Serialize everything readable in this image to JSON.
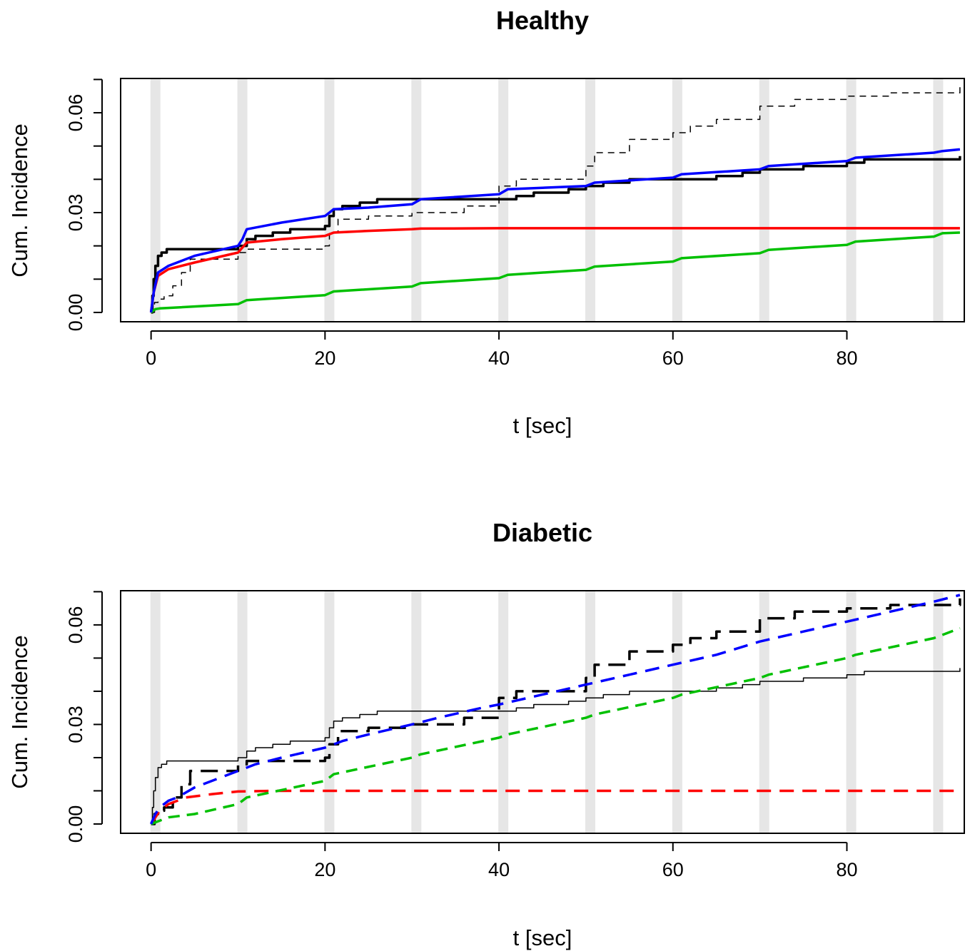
{
  "chart_data": [
    {
      "type": "line",
      "title": "Healthy",
      "xlabel": "t [sec]",
      "ylabel": "Cum. Incidence",
      "xlim": [
        -3.5,
        93.5
      ],
      "ylim": [
        -0.0028,
        0.0703
      ],
      "x_ticks": [
        0,
        20,
        40,
        60,
        80
      ],
      "x_tick_labels": [
        "0",
        "20",
        "40",
        "60",
        "80"
      ],
      "y_ticks": [
        0.0,
        0.01,
        0.02,
        0.03,
        0.04,
        0.05,
        0.06,
        0.07
      ],
      "y_tick_labels": [
        "0.00",
        "",
        "",
        "0.03",
        "",
        "",
        "0.06",
        ""
      ],
      "grid": false,
      "bands": [
        0.5,
        10.5,
        20.5,
        30.5,
        40.5,
        50.5,
        60.5,
        70.5,
        80.5,
        90.5
      ],
      "series": [
        {
          "color": "#000000",
          "width": 1.5,
          "dash": "9,7",
          "step": true,
          "x": [
            0,
            0.4,
            0.8,
            1.5,
            2.5,
            3.5,
            4.5,
            10,
            11,
            20,
            20.5,
            21.5,
            25,
            30,
            31,
            36,
            40,
            42,
            45,
            50,
            51,
            55,
            60,
            62,
            65,
            70,
            74,
            80,
            85,
            93
          ],
          "y": [
            0.0,
            0.003,
            0.004,
            0.005,
            0.008,
            0.012,
            0.016,
            0.018,
            0.019,
            0.02,
            0.024,
            0.028,
            0.029,
            0.03,
            0.03,
            0.032,
            0.038,
            0.04,
            0.04,
            0.044,
            0.048,
            0.052,
            0.054,
            0.056,
            0.058,
            0.062,
            0.064,
            0.065,
            0.066,
            0.068
          ]
        },
        {
          "color": "#000000",
          "width": 3.5,
          "step": true,
          "x": [
            0,
            0.15,
            0.3,
            0.5,
            0.8,
            1.2,
            1.8,
            3,
            10,
            11,
            12,
            14,
            16,
            18,
            20,
            20.5,
            21,
            22,
            24,
            26,
            30,
            35,
            38,
            42,
            44,
            48,
            50,
            52,
            55,
            60,
            65,
            68,
            70,
            75,
            80,
            82,
            88,
            93
          ],
          "y": [
            0.0,
            0.005,
            0.01,
            0.014,
            0.017,
            0.018,
            0.019,
            0.019,
            0.02,
            0.022,
            0.023,
            0.024,
            0.025,
            0.025,
            0.026,
            0.029,
            0.031,
            0.032,
            0.033,
            0.034,
            0.034,
            0.034,
            0.034,
            0.035,
            0.036,
            0.037,
            0.038,
            0.039,
            0.04,
            0.04,
            0.041,
            0.042,
            0.043,
            0.044,
            0.045,
            0.046,
            0.046,
            0.047
          ]
        },
        {
          "color": "#ff0000",
          "width": 3.5,
          "step": false,
          "x": [
            0,
            0.3,
            0.8,
            2,
            5,
            10,
            11,
            15,
            20,
            21,
            25,
            30,
            31,
            40,
            50,
            60,
            70,
            80,
            93
          ],
          "y": [
            0.0,
            0.006,
            0.011,
            0.013,
            0.015,
            0.018,
            0.021,
            0.022,
            0.023,
            0.024,
            0.0245,
            0.025,
            0.0252,
            0.0253,
            0.0253,
            0.0253,
            0.0253,
            0.0253,
            0.0253
          ]
        },
        {
          "color": "#00c000",
          "width": 3.5,
          "step": false,
          "x": [
            0,
            0.5,
            1,
            10,
            11,
            20,
            21,
            30,
            31,
            40,
            41,
            50,
            51,
            60,
            61,
            70,
            71,
            80,
            81,
            90,
            91,
            93
          ],
          "y": [
            0.0,
            0.001,
            0.0012,
            0.0025,
            0.0037,
            0.0052,
            0.0063,
            0.0078,
            0.0088,
            0.0103,
            0.0113,
            0.0128,
            0.0138,
            0.0153,
            0.0163,
            0.0178,
            0.0188,
            0.0203,
            0.0213,
            0.0228,
            0.0238,
            0.024
          ]
        },
        {
          "color": "#0000ff",
          "width": 3.5,
          "step": false,
          "x": [
            0,
            0.3,
            0.8,
            2,
            5,
            10,
            10.5,
            11,
            15,
            20,
            20.5,
            21,
            25,
            30,
            31,
            40,
            41,
            50,
            51,
            60,
            61,
            70,
            71,
            80,
            81,
            90,
            91,
            93
          ],
          "y": [
            0.0,
            0.006,
            0.012,
            0.014,
            0.017,
            0.02,
            0.022,
            0.025,
            0.027,
            0.029,
            0.03,
            0.031,
            0.0315,
            0.0325,
            0.034,
            0.0355,
            0.037,
            0.038,
            0.039,
            0.0405,
            0.0415,
            0.043,
            0.044,
            0.0455,
            0.0465,
            0.048,
            0.0485,
            0.049
          ]
        }
      ]
    },
    {
      "type": "line",
      "title": "Diabetic",
      "xlabel": "t [sec]",
      "ylabel": "Cum. Incidence",
      "xlim": [
        -3.5,
        93.5
      ],
      "ylim": [
        -0.0028,
        0.0703
      ],
      "x_ticks": [
        0,
        20,
        40,
        60,
        80
      ],
      "x_tick_labels": [
        "0",
        "20",
        "40",
        "60",
        "80"
      ],
      "y_ticks": [
        0.0,
        0.01,
        0.02,
        0.03,
        0.04,
        0.05,
        0.06,
        0.07
      ],
      "y_tick_labels": [
        "0.00",
        "",
        "",
        "0.03",
        "",
        "",
        "0.06",
        ""
      ],
      "grid": false,
      "bands": [
        0.5,
        10.5,
        20.5,
        30.5,
        40.5,
        50.5,
        60.5,
        70.5,
        80.5,
        90.5
      ],
      "series": [
        {
          "color": "#000000",
          "width": 1.5,
          "step": true,
          "x": [
            0,
            0.15,
            0.3,
            0.5,
            0.8,
            1.2,
            1.8,
            3,
            10,
            11,
            12,
            14,
            16,
            18,
            20,
            20.5,
            21,
            22,
            24,
            26,
            30,
            35,
            38,
            42,
            44,
            48,
            50,
            52,
            55,
            60,
            65,
            68,
            70,
            75,
            80,
            82,
            88,
            93
          ],
          "y": [
            0.0,
            0.005,
            0.01,
            0.014,
            0.017,
            0.018,
            0.019,
            0.019,
            0.02,
            0.022,
            0.023,
            0.024,
            0.025,
            0.025,
            0.026,
            0.029,
            0.031,
            0.032,
            0.033,
            0.034,
            0.034,
            0.034,
            0.034,
            0.035,
            0.036,
            0.037,
            0.038,
            0.039,
            0.04,
            0.04,
            0.041,
            0.042,
            0.043,
            0.044,
            0.045,
            0.046,
            0.046,
            0.047
          ]
        },
        {
          "color": "#000000",
          "width": 3.5,
          "dash": "24,12",
          "step": true,
          "x": [
            0,
            0.4,
            0.8,
            1.5,
            2.5,
            3.5,
            4.5,
            10,
            11,
            20,
            20.5,
            21.5,
            25,
            30,
            31,
            36,
            40,
            42,
            45,
            50,
            51,
            55,
            60,
            62,
            65,
            70,
            74,
            80,
            85,
            93
          ],
          "y": [
            0.0,
            0.003,
            0.004,
            0.005,
            0.008,
            0.012,
            0.016,
            0.018,
            0.019,
            0.02,
            0.024,
            0.028,
            0.029,
            0.03,
            0.03,
            0.032,
            0.038,
            0.04,
            0.04,
            0.044,
            0.048,
            0.052,
            0.054,
            0.056,
            0.058,
            0.062,
            0.064,
            0.065,
            0.066,
            0.068
          ]
        },
        {
          "color": "#ff0000",
          "width": 3.5,
          "dash": "20,12",
          "step": false,
          "x": [
            0,
            1,
            2,
            4,
            7,
            10,
            14,
            20,
            40,
            60,
            80,
            93
          ],
          "y": [
            0.0,
            0.004,
            0.006,
            0.008,
            0.009,
            0.0098,
            0.01,
            0.01,
            0.01,
            0.01,
            0.01,
            0.01
          ]
        },
        {
          "color": "#00c000",
          "width": 3.5,
          "dash": "16,10",
          "step": false,
          "x": [
            0,
            2,
            5,
            10,
            11,
            20,
            21,
            30,
            31,
            40,
            41,
            50,
            51,
            60,
            61,
            70,
            71,
            80,
            81,
            90,
            91,
            93
          ],
          "y": [
            0.0,
            0.002,
            0.003,
            0.006,
            0.008,
            0.013,
            0.015,
            0.02,
            0.021,
            0.026,
            0.027,
            0.032,
            0.033,
            0.038,
            0.039,
            0.044,
            0.045,
            0.05,
            0.051,
            0.056,
            0.057,
            0.059
          ]
        },
        {
          "color": "#0000ff",
          "width": 3.5,
          "dash": "20,12",
          "step": false,
          "x": [
            0,
            0.5,
            1,
            2,
            3,
            5,
            8,
            10,
            12,
            15,
            20,
            22,
            25,
            30,
            33,
            38,
            40,
            45,
            50,
            55,
            60,
            65,
            70,
            75,
            80,
            85,
            90,
            93
          ],
          "y": [
            0.0,
            0.003,
            0.005,
            0.007,
            0.008,
            0.011,
            0.014,
            0.016,
            0.018,
            0.02,
            0.023,
            0.025,
            0.027,
            0.03,
            0.032,
            0.035,
            0.036,
            0.039,
            0.042,
            0.045,
            0.048,
            0.051,
            0.055,
            0.058,
            0.061,
            0.064,
            0.067,
            0.069
          ]
        }
      ]
    }
  ]
}
